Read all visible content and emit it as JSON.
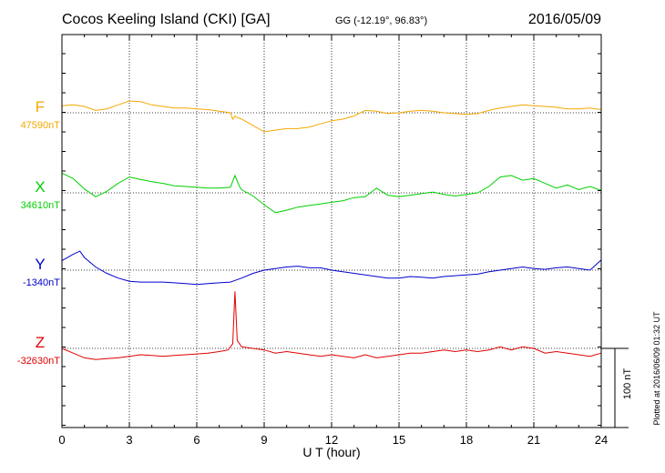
{
  "header": {
    "title": "Cocos Keeling Island (CKI)  [GA]",
    "coords": "GG (-12.19°,  96.83°)",
    "date": "2016/05/09"
  },
  "footer_note": "Plotted at 2016/06/09 01:32 UT",
  "scale_bar_label": "100 nT",
  "colors": {
    "F": "#f5a800",
    "X": "#00d000",
    "Y": "#0000cc",
    "Z": "#e00000"
  },
  "chart_data": {
    "type": "line",
    "title": "Cocos Keeling Island (CKI)  [GA]",
    "xlabel": "U T (hour)",
    "ylabel": "",
    "xlim": [
      0,
      24
    ],
    "xticks": [
      "0",
      "3",
      "6",
      "9",
      "12",
      "15",
      "18",
      "21",
      "24"
    ],
    "grid": true,
    "scale_nT_per_bar": 100,
    "series": [
      {
        "name": "F",
        "baseline_label": "47590nT",
        "x": [
          0,
          0.5,
          1,
          1.5,
          2,
          2.5,
          3,
          3.5,
          4,
          4.5,
          5,
          5.5,
          6,
          6.5,
          7,
          7.5,
          7.6,
          7.7,
          7.8,
          8,
          8.5,
          9,
          9.5,
          10,
          10.5,
          11,
          11.5,
          12,
          12.5,
          13,
          13.5,
          14,
          14.5,
          15,
          15.5,
          16,
          16.5,
          17,
          17.5,
          18,
          18.5,
          19,
          19.5,
          20,
          20.5,
          21,
          21.5,
          22,
          22.5,
          23,
          23.5,
          24
        ],
        "values": [
          9,
          10,
          8,
          3,
          5,
          10,
          15,
          14,
          10,
          8,
          6,
          6,
          5,
          4,
          2,
          0,
          -8,
          -4,
          -6,
          -8,
          -16,
          -24,
          -22,
          -20,
          -20,
          -18,
          -14,
          -10,
          -8,
          -4,
          3,
          2,
          -1,
          0,
          2,
          3,
          2,
          0,
          -1,
          -2,
          -1,
          3,
          6,
          8,
          10,
          9,
          8,
          7,
          5,
          5,
          6,
          4
        ]
      },
      {
        "name": "X",
        "baseline_label": "34610nT",
        "x": [
          0,
          0.5,
          1,
          1.5,
          2,
          2.5,
          3,
          3.5,
          4,
          4.5,
          5,
          5.5,
          6,
          6.5,
          7,
          7.5,
          7.7,
          7.9,
          8,
          8.5,
          9,
          9.5,
          10,
          10.5,
          11,
          11.5,
          12,
          12.5,
          13,
          13.5,
          14,
          14.5,
          15,
          15.5,
          16,
          16.5,
          17,
          17.5,
          18,
          18.5,
          19,
          19.5,
          20,
          20.5,
          21,
          21.5,
          22,
          22.5,
          23,
          23.5,
          24
        ],
        "values": [
          25,
          18,
          5,
          -5,
          2,
          12,
          20,
          17,
          14,
          12,
          9,
          8,
          7,
          6,
          6,
          7,
          22,
          8,
          4,
          -4,
          -15,
          -25,
          -22,
          -18,
          -16,
          -14,
          -12,
          -10,
          -6,
          -5,
          6,
          -3,
          -5,
          -3,
          -1,
          1,
          -2,
          -4,
          -2,
          0,
          8,
          20,
          22,
          16,
          18,
          12,
          6,
          10,
          4,
          8,
          3
        ]
      },
      {
        "name": "Y",
        "baseline_label": "-1340nT",
        "x": [
          0,
          0.5,
          0.8,
          1,
          1.5,
          2,
          2.5,
          3,
          3.5,
          4,
          4.5,
          5,
          5.5,
          6,
          6.5,
          7,
          7.5,
          8,
          8.5,
          9,
          9.5,
          10,
          10.5,
          11,
          11.5,
          12,
          12.5,
          13,
          13.5,
          14,
          14.5,
          15,
          15.5,
          16,
          16.5,
          17,
          17.5,
          18,
          18.5,
          19,
          19.5,
          20,
          20.5,
          21,
          21.5,
          22,
          22.5,
          23,
          23.5,
          24
        ],
        "values": [
          12,
          20,
          24,
          16,
          4,
          -4,
          -10,
          -14,
          -15,
          -15,
          -15,
          -16,
          -17,
          -18,
          -17,
          -16,
          -15,
          -10,
          -4,
          0,
          2,
          4,
          5,
          3,
          3,
          0,
          -2,
          -4,
          -6,
          -8,
          -10,
          -10,
          -8,
          -9,
          -10,
          -8,
          -7,
          -6,
          -5,
          -2,
          0,
          2,
          4,
          2,
          1,
          3,
          4,
          2,
          0,
          13
        ]
      },
      {
        "name": "Z",
        "baseline_label": "-32630nT",
        "x": [
          0,
          0.5,
          1,
          1.5,
          2,
          2.5,
          3,
          3.5,
          4,
          4.5,
          5,
          5.5,
          6,
          6.5,
          7,
          7.4,
          7.6,
          7.7,
          7.8,
          7.9,
          8,
          8.5,
          9,
          9.5,
          10,
          10.5,
          11,
          11.5,
          12,
          12.5,
          13,
          13.5,
          14,
          14.5,
          15,
          15.5,
          16,
          16.5,
          17,
          17.5,
          18,
          18.5,
          19,
          19.5,
          20,
          20.5,
          21,
          21.5,
          22,
          22.5,
          23,
          23.5,
          24
        ],
        "values": [
          0,
          -6,
          -12,
          -14,
          -13,
          -12,
          -10,
          -8,
          -9,
          -10,
          -9,
          -8,
          -7,
          -6,
          -4,
          -2,
          6,
          72,
          10,
          6,
          2,
          0,
          -2,
          -6,
          -4,
          -6,
          -8,
          -10,
          -8,
          -10,
          -12,
          -8,
          -12,
          -10,
          -8,
          -6,
          -6,
          -4,
          -2,
          -4,
          -2,
          -4,
          -2,
          2,
          -2,
          2,
          0,
          -6,
          -4,
          -6,
          -8,
          -10,
          -6
        ]
      }
    ]
  }
}
